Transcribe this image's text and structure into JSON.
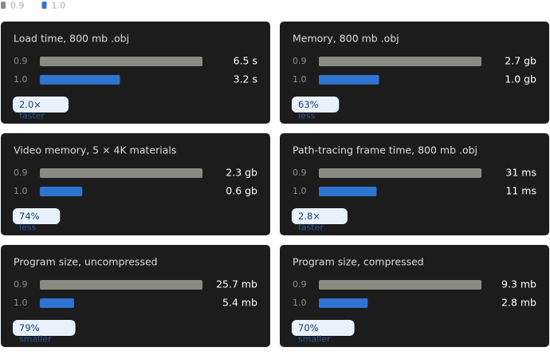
{
  "legend": [
    {
      "name": "0.9",
      "color": "#8a8984"
    },
    {
      "name": "1.0",
      "color": "#2f74d0"
    }
  ],
  "chart_data": [
    {
      "type": "bar",
      "title": "Load time, 800 mb .obj",
      "categories": [
        "0.9",
        "1.0"
      ],
      "values": [
        6.5,
        3.2
      ],
      "value_labels": [
        "6.5 s",
        "3.2 s"
      ],
      "annotation": "2.0×",
      "annotation_note": "faster"
    },
    {
      "type": "bar",
      "title": "Memory, 800 mb .obj",
      "categories": [
        "0.9",
        "1.0"
      ],
      "values": [
        2.7,
        1.0
      ],
      "value_labels": [
        "2.7 gb",
        "1.0 gb"
      ],
      "annotation": "63%",
      "annotation_note": "less"
    },
    {
      "type": "bar",
      "title": "Video memory, 5 × 4K materials",
      "categories": [
        "0.9",
        "1.0"
      ],
      "values": [
        2.3,
        0.6
      ],
      "value_labels": [
        "2.3 gb",
        "0.6 gb"
      ],
      "annotation": "74%",
      "annotation_note": "less"
    },
    {
      "type": "bar",
      "title": "Path-tracing frame time, 800 mb .obj",
      "categories": [
        "0.9",
        "1.0"
      ],
      "values": [
        31,
        11
      ],
      "value_labels": [
        "31 ms",
        "11 ms"
      ],
      "annotation": "2.8×",
      "annotation_note": "faster"
    },
    {
      "type": "bar",
      "title": "Program size, uncompressed",
      "categories": [
        "0.9",
        "1.0"
      ],
      "values": [
        25.7,
        5.4
      ],
      "value_labels": [
        "25.7 mb",
        "5.4 mb"
      ],
      "annotation": "79%",
      "annotation_note": "smaller"
    },
    {
      "type": "bar",
      "title": "Program size, compressed",
      "categories": [
        "0.9",
        "1.0"
      ],
      "values": [
        9.3,
        2.8
      ],
      "value_labels": [
        "9.3 mb",
        "2.8 mb"
      ],
      "annotation": "70%",
      "annotation_note": "smaller"
    }
  ]
}
